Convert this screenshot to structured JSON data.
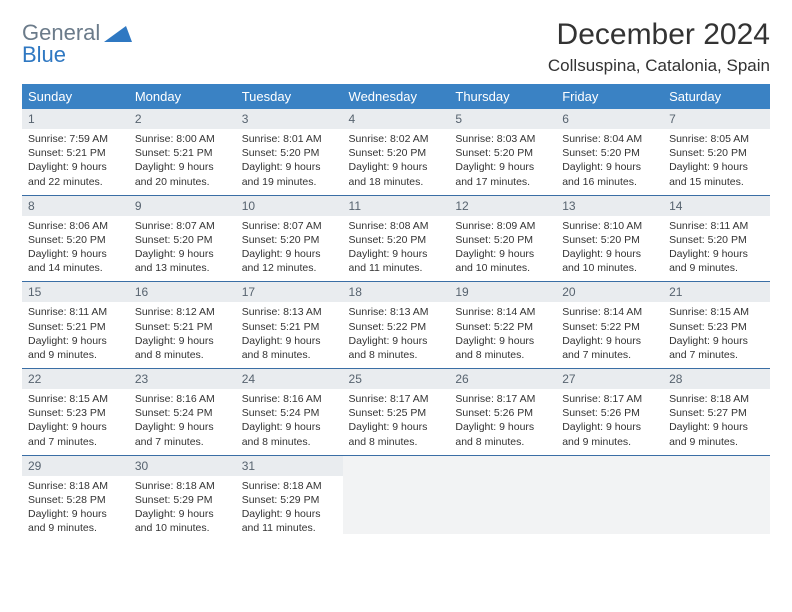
{
  "brand": {
    "part1": "General",
    "part2": "Blue"
  },
  "title": "December 2024",
  "location": "Collsuspina, Catalonia, Spain",
  "colors": {
    "header_bg": "#3a82c4",
    "header_text": "#ffffff",
    "daynum_bg": "#e9ecef",
    "daynum_text": "#57636f",
    "border": "#3a6ea5",
    "logo_gray": "#6b7b8a",
    "logo_blue": "#2f78c2"
  },
  "weekdays": [
    "Sunday",
    "Monday",
    "Tuesday",
    "Wednesday",
    "Thursday",
    "Friday",
    "Saturday"
  ],
  "weeks": [
    [
      {
        "n": "1",
        "sr": "7:59 AM",
        "ss": "5:21 PM",
        "dl": "9 hours and 22 minutes."
      },
      {
        "n": "2",
        "sr": "8:00 AM",
        "ss": "5:21 PM",
        "dl": "9 hours and 20 minutes."
      },
      {
        "n": "3",
        "sr": "8:01 AM",
        "ss": "5:20 PM",
        "dl": "9 hours and 19 minutes."
      },
      {
        "n": "4",
        "sr": "8:02 AM",
        "ss": "5:20 PM",
        "dl": "9 hours and 18 minutes."
      },
      {
        "n": "5",
        "sr": "8:03 AM",
        "ss": "5:20 PM",
        "dl": "9 hours and 17 minutes."
      },
      {
        "n": "6",
        "sr": "8:04 AM",
        "ss": "5:20 PM",
        "dl": "9 hours and 16 minutes."
      },
      {
        "n": "7",
        "sr": "8:05 AM",
        "ss": "5:20 PM",
        "dl": "9 hours and 15 minutes."
      }
    ],
    [
      {
        "n": "8",
        "sr": "8:06 AM",
        "ss": "5:20 PM",
        "dl": "9 hours and 14 minutes."
      },
      {
        "n": "9",
        "sr": "8:07 AM",
        "ss": "5:20 PM",
        "dl": "9 hours and 13 minutes."
      },
      {
        "n": "10",
        "sr": "8:07 AM",
        "ss": "5:20 PM",
        "dl": "9 hours and 12 minutes."
      },
      {
        "n": "11",
        "sr": "8:08 AM",
        "ss": "5:20 PM",
        "dl": "9 hours and 11 minutes."
      },
      {
        "n": "12",
        "sr": "8:09 AM",
        "ss": "5:20 PM",
        "dl": "9 hours and 10 minutes."
      },
      {
        "n": "13",
        "sr": "8:10 AM",
        "ss": "5:20 PM",
        "dl": "9 hours and 10 minutes."
      },
      {
        "n": "14",
        "sr": "8:11 AM",
        "ss": "5:20 PM",
        "dl": "9 hours and 9 minutes."
      }
    ],
    [
      {
        "n": "15",
        "sr": "8:11 AM",
        "ss": "5:21 PM",
        "dl": "9 hours and 9 minutes."
      },
      {
        "n": "16",
        "sr": "8:12 AM",
        "ss": "5:21 PM",
        "dl": "9 hours and 8 minutes."
      },
      {
        "n": "17",
        "sr": "8:13 AM",
        "ss": "5:21 PM",
        "dl": "9 hours and 8 minutes."
      },
      {
        "n": "18",
        "sr": "8:13 AM",
        "ss": "5:22 PM",
        "dl": "9 hours and 8 minutes."
      },
      {
        "n": "19",
        "sr": "8:14 AM",
        "ss": "5:22 PM",
        "dl": "9 hours and 8 minutes."
      },
      {
        "n": "20",
        "sr": "8:14 AM",
        "ss": "5:22 PM",
        "dl": "9 hours and 7 minutes."
      },
      {
        "n": "21",
        "sr": "8:15 AM",
        "ss": "5:23 PM",
        "dl": "9 hours and 7 minutes."
      }
    ],
    [
      {
        "n": "22",
        "sr": "8:15 AM",
        "ss": "5:23 PM",
        "dl": "9 hours and 7 minutes."
      },
      {
        "n": "23",
        "sr": "8:16 AM",
        "ss": "5:24 PM",
        "dl": "9 hours and 7 minutes."
      },
      {
        "n": "24",
        "sr": "8:16 AM",
        "ss": "5:24 PM",
        "dl": "9 hours and 8 minutes."
      },
      {
        "n": "25",
        "sr": "8:17 AM",
        "ss": "5:25 PM",
        "dl": "9 hours and 8 minutes."
      },
      {
        "n": "26",
        "sr": "8:17 AM",
        "ss": "5:26 PM",
        "dl": "9 hours and 8 minutes."
      },
      {
        "n": "27",
        "sr": "8:17 AM",
        "ss": "5:26 PM",
        "dl": "9 hours and 9 minutes."
      },
      {
        "n": "28",
        "sr": "8:18 AM",
        "ss": "5:27 PM",
        "dl": "9 hours and 9 minutes."
      }
    ],
    [
      {
        "n": "29",
        "sr": "8:18 AM",
        "ss": "5:28 PM",
        "dl": "9 hours and 9 minutes."
      },
      {
        "n": "30",
        "sr": "8:18 AM",
        "ss": "5:29 PM",
        "dl": "9 hours and 10 minutes."
      },
      {
        "n": "31",
        "sr": "8:18 AM",
        "ss": "5:29 PM",
        "dl": "9 hours and 11 minutes."
      },
      null,
      null,
      null,
      null
    ]
  ],
  "labels": {
    "sunrise": "Sunrise:",
    "sunset": "Sunset:",
    "daylight": "Daylight:"
  }
}
